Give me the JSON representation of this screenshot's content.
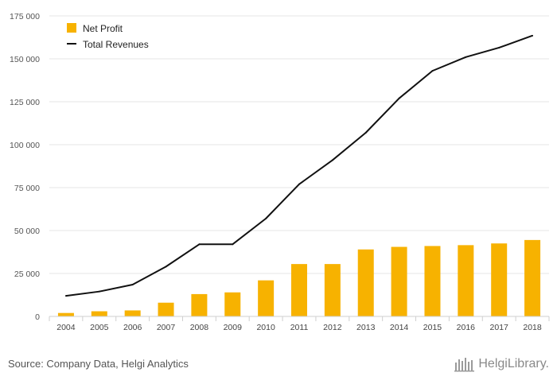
{
  "chart_data": {
    "type": "bar+line",
    "categories": [
      "2004",
      "2005",
      "2006",
      "2007",
      "2008",
      "2009",
      "2010",
      "2011",
      "2012",
      "2013",
      "2014",
      "2015",
      "2016",
      "2017",
      "2018"
    ],
    "series": [
      {
        "name": "Net Profit",
        "type": "bar",
        "color": "#F7B200",
        "values": [
          2000,
          3000,
          3500,
          8000,
          13000,
          14000,
          21000,
          30500,
          30500,
          39000,
          40500,
          41000,
          41500,
          42500,
          44500
        ]
      },
      {
        "name": "Total Revenues",
        "type": "line",
        "color": "#111111",
        "values": [
          12000,
          14500,
          18500,
          29000,
          42000,
          42000,
          57000,
          77000,
          91000,
          107000,
          127000,
          143000,
          151000,
          156500,
          163500
        ]
      }
    ],
    "ylim": [
      0,
      175000
    ],
    "yticks": [
      0,
      25000,
      50000,
      75000,
      100000,
      125000,
      150000,
      175000
    ],
    "ytick_labels": [
      "0",
      "25 000",
      "50 000",
      "75 000",
      "100 000",
      "125 000",
      "150 000",
      "175 000"
    ],
    "grid": true,
    "legend_position": "top-left",
    "title": "",
    "xlabel": "",
    "ylabel": ""
  },
  "footer": {
    "source": "Source: Company Data, Helgi Analytics",
    "logo_text": "HelgiLibrary."
  }
}
